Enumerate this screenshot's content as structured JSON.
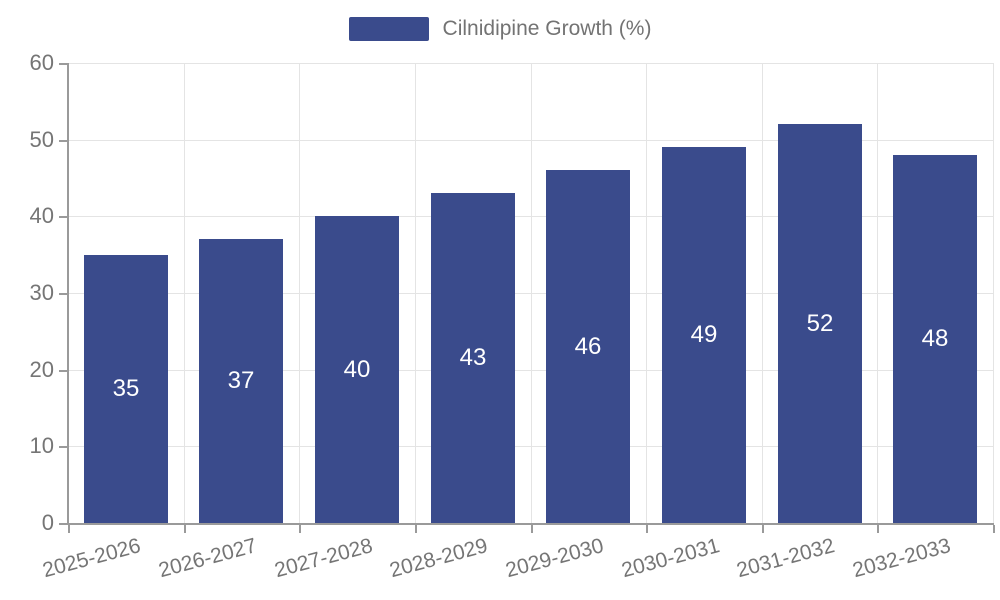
{
  "legend": {
    "label": "Cilnidipine Growth (%)"
  },
  "colors": {
    "bar": "#3A4B8C",
    "grid": "#E4E4E4",
    "axis": "#9A9A9A",
    "tick_text": "#757575",
    "value_label": "#FFFFFF"
  },
  "chart_data": {
    "type": "bar",
    "title": "",
    "categories": [
      "2025-2026",
      "2026-2027",
      "2027-2028",
      "2028-2029",
      "2029-2030",
      "2030-2031",
      "2031-2032",
      "2032-2033"
    ],
    "series": [
      {
        "name": "Cilnidipine Growth (%)",
        "values": [
          35,
          37,
          40,
          43,
          46,
          49,
          52,
          48
        ]
      }
    ],
    "value_labels": [
      "35",
      "37",
      "40",
      "43",
      "46",
      "49",
      "52",
      "48"
    ],
    "xlabel": "",
    "ylabel": "",
    "ylim": [
      0,
      60
    ],
    "yticks": [
      0,
      10,
      20,
      30,
      40,
      50,
      60
    ],
    "grid": true,
    "legend_position": "top-center",
    "x_label_rotation_deg": -15
  }
}
